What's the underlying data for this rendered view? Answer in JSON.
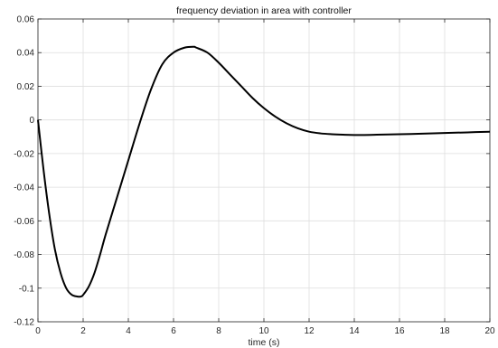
{
  "chart_data": {
    "type": "line",
    "title": "frequency deviation in area with controller",
    "xlabel": "time (s)",
    "ylabel": "",
    "xlim": [
      0,
      20
    ],
    "ylim": [
      -0.12,
      0.06
    ],
    "xticks": [
      "0",
      "2",
      "4",
      "6",
      "8",
      "10",
      "12",
      "14",
      "16",
      "18",
      "20"
    ],
    "yticks": [
      "0.06",
      "0.04",
      "0.02",
      "0",
      "-0.02",
      "-0.04",
      "-0.06",
      "-0.08",
      "-0.1",
      "-0.12"
    ],
    "grid": true,
    "series": [
      {
        "color": "#000000",
        "x": [
          0,
          0.25,
          0.5,
          0.75,
          1.0,
          1.25,
          1.5,
          1.75,
          1.9,
          2.0,
          2.25,
          2.5,
          2.75,
          3.0,
          3.5,
          4.0,
          4.5,
          5.0,
          5.5,
          6.0,
          6.5,
          6.9,
          7.0,
          7.5,
          8.0,
          8.5,
          9.0,
          9.5,
          10.0,
          10.5,
          11.0,
          11.5,
          12.0,
          12.5,
          13.0,
          13.5,
          14.0,
          15.0,
          16.0,
          17.0,
          18.0,
          19.0,
          20.0
        ],
        "y": [
          0.0,
          -0.03,
          -0.056,
          -0.077,
          -0.091,
          -0.1,
          -0.104,
          -0.105,
          -0.105,
          -0.104,
          -0.099,
          -0.091,
          -0.08,
          -0.068,
          -0.046,
          -0.024,
          -0.002,
          0.018,
          0.033,
          0.04,
          0.043,
          0.0435,
          0.043,
          0.04,
          0.034,
          0.027,
          0.02,
          0.013,
          0.007,
          0.002,
          -0.002,
          -0.005,
          -0.007,
          -0.008,
          -0.0085,
          -0.0088,
          -0.009,
          -0.0088,
          -0.0085,
          -0.0082,
          -0.0078,
          -0.0074,
          -0.007
        ]
      }
    ]
  }
}
